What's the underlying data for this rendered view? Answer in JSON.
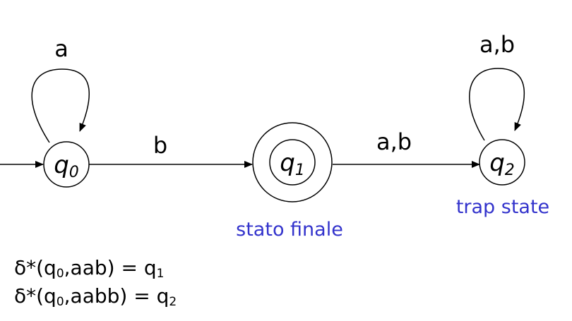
{
  "states": [
    {
      "name": "q",
      "sub": "0"
    },
    {
      "name": "q",
      "sub": "1"
    },
    {
      "name": "q",
      "sub": "2"
    }
  ],
  "transitions": {
    "loop_q0": "a",
    "q0_q1": "b",
    "q1_q2": "a,b",
    "loop_q2": "a,b"
  },
  "annotations": {
    "final_state": "stato finale",
    "trap_state": "trap state"
  },
  "formulas": [
    {
      "prefix": "δ*(q",
      "sub1": "0",
      "mid": ",aab) = q",
      "sub2": "1"
    },
    {
      "prefix": "δ*(q",
      "sub1": "0",
      "mid": ",aabb) = q",
      "sub2": "2"
    }
  ]
}
